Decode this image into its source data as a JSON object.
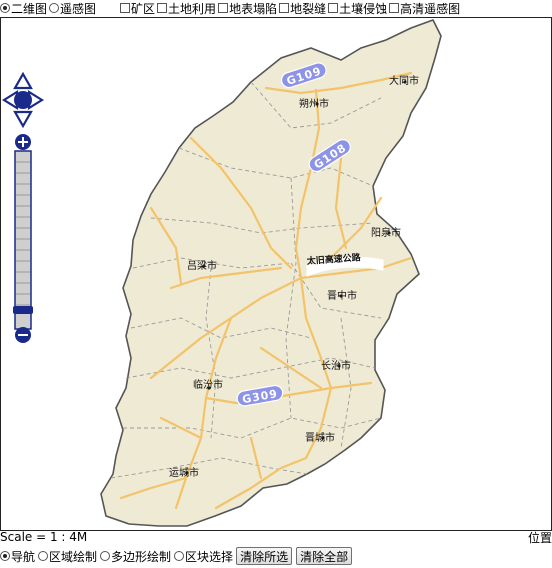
{
  "layers": {
    "base_2d": "二维图",
    "base_rs": "遥感图",
    "mine": "矿区",
    "landuse": "土地利用",
    "subsidence": "地表塌陷",
    "fissure": "地裂缝",
    "erosion": "土壤侵蚀",
    "hires": "高清遥感图",
    "selected_base": "二维图"
  },
  "map": {
    "cities": {
      "datong": "大同市",
      "shuozhou": "朔州市",
      "yangquan": "阳泉市",
      "lvliang": "吕梁市",
      "jinzhong": "晋中市",
      "changzhi": "长治市",
      "linfen": "临汾市",
      "jincheng": "晋城市",
      "yuncheng": "运城市"
    },
    "expressway": "太旧高速公路",
    "shields": {
      "g109": "G109",
      "g108": "G108",
      "g309": "G309"
    },
    "colors": {
      "province_fill": "#efead4",
      "border": "#555555",
      "road": "#f3c36a",
      "boundary": "#9a9a9a",
      "shield": "#8d93e6",
      "nav": "#1a2a8a"
    }
  },
  "status": {
    "scale": "Scale = 1 : 4M",
    "position": "位置"
  },
  "tools": {
    "navigate": "导航",
    "region_draw": "区域绘制",
    "polygon_draw": "多边形绘制",
    "block_select": "区块选择",
    "clear_selected": "清除所选",
    "clear_all": "清除全部"
  }
}
